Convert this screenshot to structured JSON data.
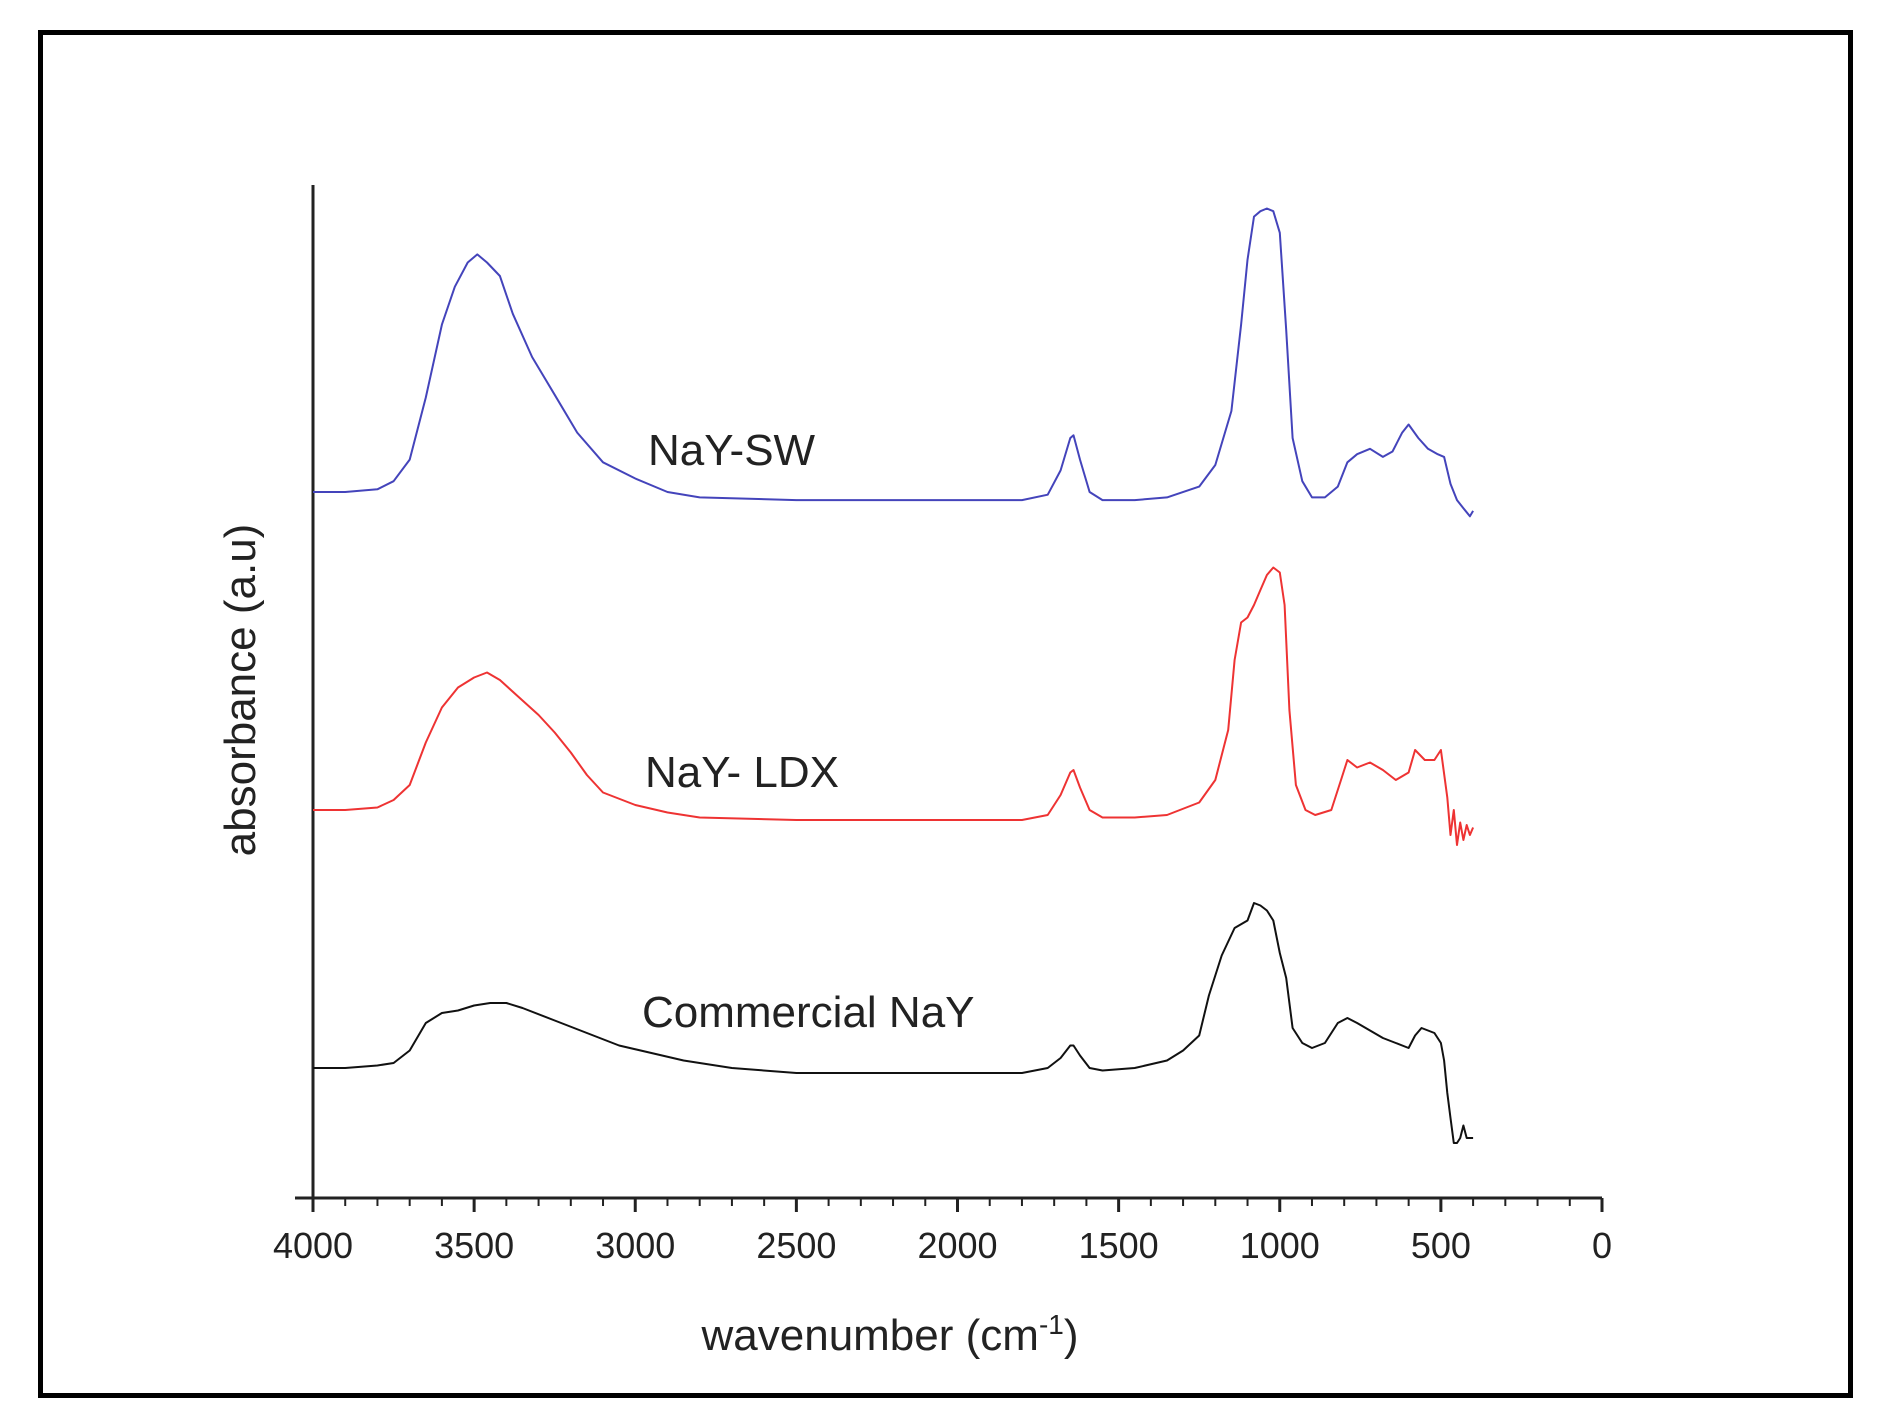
{
  "chart_data": {
    "type": "line",
    "xlabel": "wavenumber (cm",
    "xlabel_sup": "-1",
    "xlabel_close": ")",
    "ylabel": "absorbance (a.u)",
    "xlim": [
      4000,
      0
    ],
    "x_reversed": true,
    "xticks": [
      "4000",
      "3500",
      "3000",
      "2500",
      "2000",
      "1500",
      "1000",
      "500",
      "0"
    ],
    "xtick_values": [
      4000,
      3500,
      3000,
      2500,
      2000,
      1500,
      1000,
      500,
      0
    ],
    "grid": false,
    "legend": "none",
    "series": [
      {
        "name": "NaY-SW",
        "color": "#4444bb",
        "points": [
          [
            4000,
            0.0
          ],
          [
            3900,
            0.0
          ],
          [
            3800,
            0.01
          ],
          [
            3750,
            0.04
          ],
          [
            3700,
            0.12
          ],
          [
            3650,
            0.35
          ],
          [
            3600,
            0.62
          ],
          [
            3560,
            0.76
          ],
          [
            3520,
            0.85
          ],
          [
            3490,
            0.88
          ],
          [
            3460,
            0.85
          ],
          [
            3420,
            0.8
          ],
          [
            3380,
            0.66
          ],
          [
            3320,
            0.5
          ],
          [
            3250,
            0.36
          ],
          [
            3180,
            0.22
          ],
          [
            3100,
            0.11
          ],
          [
            3000,
            0.05
          ],
          [
            2900,
            0.0
          ],
          [
            2800,
            -0.02
          ],
          [
            2500,
            -0.03
          ],
          [
            2000,
            -0.03
          ],
          [
            1800,
            -0.03
          ],
          [
            1720,
            -0.01
          ],
          [
            1680,
            0.08
          ],
          [
            1650,
            0.2
          ],
          [
            1640,
            0.21
          ],
          [
            1620,
            0.12
          ],
          [
            1590,
            0.0
          ],
          [
            1550,
            -0.03
          ],
          [
            1450,
            -0.03
          ],
          [
            1350,
            -0.02
          ],
          [
            1250,
            0.02
          ],
          [
            1200,
            0.1
          ],
          [
            1150,
            0.3
          ],
          [
            1120,
            0.62
          ],
          [
            1100,
            0.86
          ],
          [
            1080,
            1.02
          ],
          [
            1060,
            1.04
          ],
          [
            1040,
            1.05
          ],
          [
            1020,
            1.04
          ],
          [
            1000,
            0.96
          ],
          [
            980,
            0.6
          ],
          [
            960,
            0.2
          ],
          [
            930,
            0.04
          ],
          [
            900,
            -0.02
          ],
          [
            860,
            -0.02
          ],
          [
            820,
            0.02
          ],
          [
            790,
            0.11
          ],
          [
            760,
            0.14
          ],
          [
            720,
            0.16
          ],
          [
            680,
            0.13
          ],
          [
            650,
            0.15
          ],
          [
            620,
            0.22
          ],
          [
            600,
            0.25
          ],
          [
            570,
            0.2
          ],
          [
            540,
            0.16
          ],
          [
            510,
            0.14
          ],
          [
            490,
            0.13
          ],
          [
            470,
            0.03
          ],
          [
            450,
            -0.03
          ],
          [
            430,
            -0.06
          ],
          [
            410,
            -0.09
          ],
          [
            400,
            -0.07
          ]
        ]
      },
      {
        "name": "NaY- LDX",
        "color": "#ee3333",
        "points": [
          [
            4000,
            0.0
          ],
          [
            3900,
            0.0
          ],
          [
            3800,
            0.01
          ],
          [
            3750,
            0.04
          ],
          [
            3700,
            0.1
          ],
          [
            3650,
            0.27
          ],
          [
            3600,
            0.41
          ],
          [
            3550,
            0.49
          ],
          [
            3500,
            0.53
          ],
          [
            3460,
            0.55
          ],
          [
            3420,
            0.52
          ],
          [
            3360,
            0.45
          ],
          [
            3300,
            0.38
          ],
          [
            3250,
            0.31
          ],
          [
            3200,
            0.23
          ],
          [
            3150,
            0.14
          ],
          [
            3100,
            0.07
          ],
          [
            3000,
            0.02
          ],
          [
            2900,
            -0.01
          ],
          [
            2800,
            -0.03
          ],
          [
            2500,
            -0.04
          ],
          [
            2000,
            -0.04
          ],
          [
            1800,
            -0.04
          ],
          [
            1720,
            -0.02
          ],
          [
            1680,
            0.06
          ],
          [
            1650,
            0.15
          ],
          [
            1640,
            0.16
          ],
          [
            1620,
            0.09
          ],
          [
            1590,
            0.0
          ],
          [
            1550,
            -0.03
          ],
          [
            1450,
            -0.03
          ],
          [
            1350,
            -0.02
          ],
          [
            1250,
            0.03
          ],
          [
            1200,
            0.12
          ],
          [
            1160,
            0.32
          ],
          [
            1140,
            0.6
          ],
          [
            1120,
            0.75
          ],
          [
            1100,
            0.77
          ],
          [
            1080,
            0.82
          ],
          [
            1060,
            0.88
          ],
          [
            1040,
            0.94
          ],
          [
            1020,
            0.97
          ],
          [
            1000,
            0.95
          ],
          [
            985,
            0.82
          ],
          [
            970,
            0.4
          ],
          [
            950,
            0.1
          ],
          [
            920,
            0.0
          ],
          [
            890,
            -0.02
          ],
          [
            840,
            0.0
          ],
          [
            810,
            0.12
          ],
          [
            790,
            0.2
          ],
          [
            760,
            0.17
          ],
          [
            720,
            0.19
          ],
          [
            680,
            0.16
          ],
          [
            640,
            0.12
          ],
          [
            600,
            0.15
          ],
          [
            580,
            0.24
          ],
          [
            550,
            0.2
          ],
          [
            520,
            0.2
          ],
          [
            500,
            0.24
          ],
          [
            480,
            0.05
          ],
          [
            470,
            -0.1
          ],
          [
            460,
            0.0
          ],
          [
            450,
            -0.14
          ],
          [
            440,
            -0.05
          ],
          [
            430,
            -0.12
          ],
          [
            420,
            -0.06
          ],
          [
            410,
            -0.1
          ],
          [
            400,
            -0.07
          ]
        ]
      },
      {
        "name": "Commercial NaY",
        "color": "#111111",
        "points": [
          [
            4000,
            0.0
          ],
          [
            3900,
            0.0
          ],
          [
            3800,
            0.01
          ],
          [
            3750,
            0.02
          ],
          [
            3700,
            0.07
          ],
          [
            3650,
            0.18
          ],
          [
            3600,
            0.22
          ],
          [
            3550,
            0.23
          ],
          [
            3500,
            0.25
          ],
          [
            3450,
            0.26
          ],
          [
            3400,
            0.26
          ],
          [
            3350,
            0.24
          ],
          [
            3250,
            0.19
          ],
          [
            3150,
            0.14
          ],
          [
            3050,
            0.09
          ],
          [
            2950,
            0.06
          ],
          [
            2850,
            0.03
          ],
          [
            2700,
            0.0
          ],
          [
            2500,
            -0.02
          ],
          [
            2000,
            -0.02
          ],
          [
            1800,
            -0.02
          ],
          [
            1720,
            0.0
          ],
          [
            1680,
            0.04
          ],
          [
            1650,
            0.09
          ],
          [
            1640,
            0.09
          ],
          [
            1620,
            0.05
          ],
          [
            1590,
            0.0
          ],
          [
            1550,
            -0.01
          ],
          [
            1450,
            0.0
          ],
          [
            1350,
            0.03
          ],
          [
            1300,
            0.07
          ],
          [
            1250,
            0.13
          ],
          [
            1220,
            0.29
          ],
          [
            1180,
            0.45
          ],
          [
            1140,
            0.56
          ],
          [
            1100,
            0.59
          ],
          [
            1080,
            0.66
          ],
          [
            1060,
            0.65
          ],
          [
            1040,
            0.63
          ],
          [
            1020,
            0.59
          ],
          [
            1000,
            0.46
          ],
          [
            980,
            0.36
          ],
          [
            960,
            0.16
          ],
          [
            930,
            0.1
          ],
          [
            900,
            0.08
          ],
          [
            860,
            0.1
          ],
          [
            820,
            0.18
          ],
          [
            790,
            0.2
          ],
          [
            760,
            0.18
          ],
          [
            720,
            0.15
          ],
          [
            680,
            0.12
          ],
          [
            640,
            0.1
          ],
          [
            600,
            0.08
          ],
          [
            580,
            0.13
          ],
          [
            560,
            0.16
          ],
          [
            540,
            0.15
          ],
          [
            520,
            0.14
          ],
          [
            500,
            0.1
          ],
          [
            490,
            0.03
          ],
          [
            480,
            -0.1
          ],
          [
            470,
            -0.2
          ],
          [
            460,
            -0.3
          ],
          [
            450,
            -0.3
          ],
          [
            440,
            -0.28
          ],
          [
            430,
            -0.23
          ],
          [
            420,
            -0.28
          ],
          [
            400,
            -0.28
          ]
        ]
      }
    ]
  }
}
